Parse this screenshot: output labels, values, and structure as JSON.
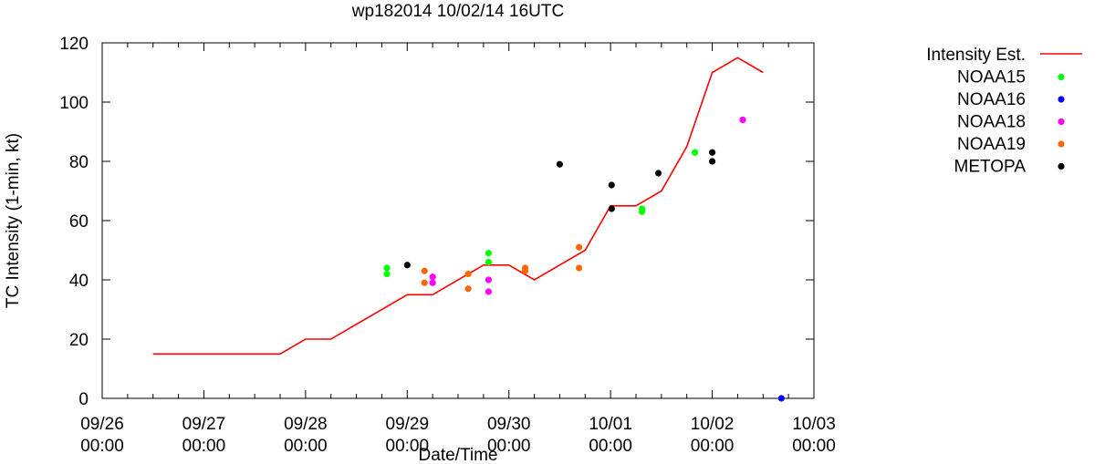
{
  "chart_data": {
    "type": "line",
    "title": "wp182014 10/02/14 16UTC",
    "xlabel": "Date/Time",
    "ylabel": "TC Intensity (1-min, kt)",
    "xlim": [
      0,
      7
    ],
    "ylim": [
      0,
      120
    ],
    "x_unit": "days since 09/26 00:00",
    "x_ticks": [
      {
        "x": 0,
        "date": "09/26",
        "time": "00:00"
      },
      {
        "x": 1,
        "date": "09/27",
        "time": "00:00"
      },
      {
        "x": 2,
        "date": "09/28",
        "time": "00:00"
      },
      {
        "x": 3,
        "date": "09/29",
        "time": "00:00"
      },
      {
        "x": 4,
        "date": "09/30",
        "time": "00:00"
      },
      {
        "x": 5,
        "date": "10/01",
        "time": "00:00"
      },
      {
        "x": 6,
        "date": "10/02",
        "time": "00:00"
      },
      {
        "x": 7,
        "date": "10/03",
        "time": "00:00"
      }
    ],
    "y_ticks": [
      "0",
      "20",
      "40",
      "60",
      "80",
      "100",
      "120"
    ],
    "series": [
      {
        "name": "Intensity Est.",
        "style": "line",
        "color": "#ff0000",
        "x": [
          0.5,
          1.75,
          2.0,
          2.25,
          3.0,
          3.25,
          3.75,
          4.0,
          4.25,
          4.75,
          5.0,
          5.25,
          5.5,
          5.75,
          6.0,
          6.25,
          6.5
        ],
        "y": [
          15,
          15,
          20,
          20,
          35,
          35,
          45,
          45,
          40,
          50,
          65,
          65,
          70,
          85,
          110,
          115,
          110
        ]
      },
      {
        "name": "NOAA15",
        "style": "points",
        "color": "#00ff00",
        "x": [
          2.8,
          2.8,
          3.8,
          3.8,
          5.31,
          5.31,
          5.83,
          5.83
        ],
        "y": [
          44,
          42,
          49,
          46,
          64,
          63,
          83,
          83
        ]
      },
      {
        "name": "NOAA16",
        "style": "points",
        "color": "#0000ff",
        "x": [
          6.68
        ],
        "y": [
          0
        ]
      },
      {
        "name": "NOAA18",
        "style": "points",
        "color": "#ff00ff",
        "x": [
          3.25,
          3.25,
          3.8,
          3.8,
          6.3,
          6.3
        ],
        "y": [
          41,
          39,
          40,
          36,
          94,
          94
        ]
      },
      {
        "name": "NOAA19",
        "style": "points",
        "color": "#ff6600",
        "x": [
          3.17,
          3.17,
          3.6,
          3.6,
          4.16,
          4.16,
          4.69,
          4.69
        ],
        "y": [
          43,
          39,
          42,
          37,
          44,
          43,
          51,
          44
        ]
      },
      {
        "name": "METOPA",
        "style": "points",
        "color": "#000000",
        "x": [
          3.0,
          4.5,
          5.01,
          5.01,
          5.47,
          6.0,
          6.0
        ],
        "y": [
          45,
          79,
          72,
          64,
          76,
          83,
          80
        ]
      }
    ],
    "legend_position": "outside-right"
  }
}
